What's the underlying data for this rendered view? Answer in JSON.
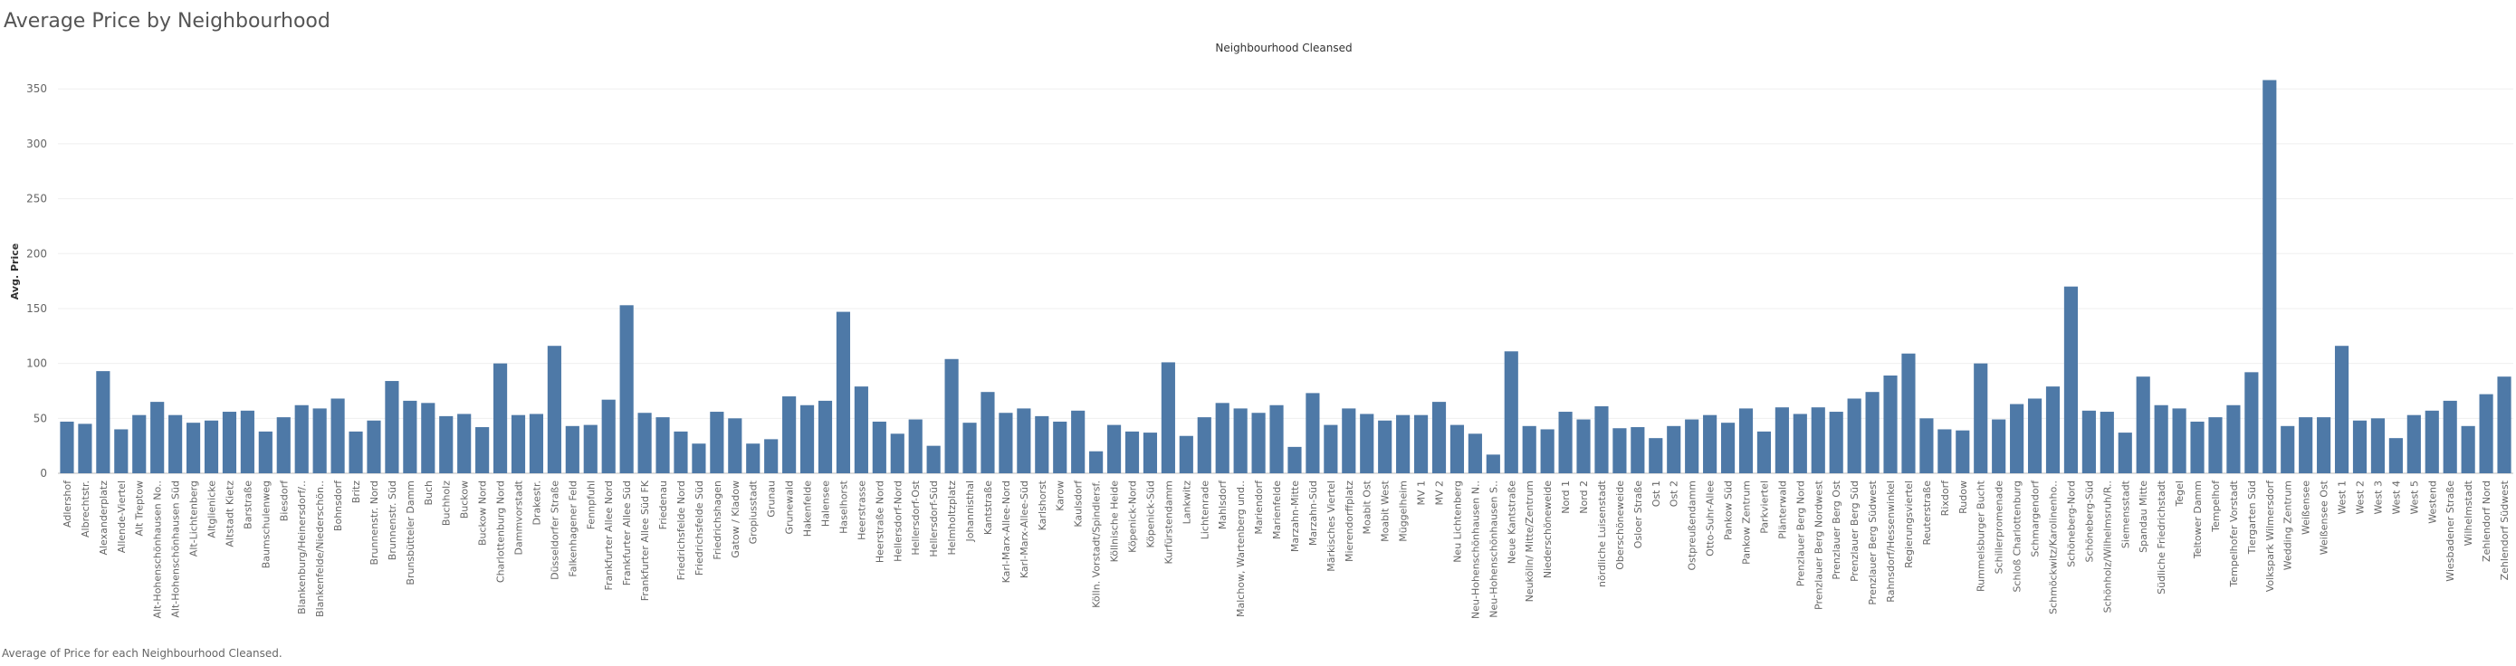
{
  "chart_data": {
    "type": "bar",
    "title": "Average Price by Neighbourhood",
    "header": "Neighbourhood Cleansed",
    "ylabel": "Avg. Price",
    "footer": "Average of Price for each Neighbourhood Cleansed.",
    "color": "#4e79a7",
    "grid": true,
    "ylim": [
      0,
      365
    ],
    "yticks": [
      0,
      50,
      100,
      150,
      200,
      250,
      300,
      350
    ],
    "categories": [
      "Adlershof",
      "Albrechtstr.",
      "Alexanderplatz",
      "Allende-Viertel",
      "Alt Treptow",
      "Alt-Hohenschönhausen No..",
      "Alt-Hohenschönhausen Süd",
      "Alt-Lichtenberg",
      "Altglienicke",
      "Altstadt Kietz",
      "Barstraße",
      "Baumschulenweg",
      "Biesdorf",
      "Blankenburg/Heinersdorf/..",
      "Blankenfelde/Niederschön..",
      "Bohnsdorf",
      "Britz",
      "Brunnenstr. Nord",
      "Brunnenstr. Süd",
      "Brunsbütteler Damm",
      "Buch",
      "Buchholz",
      "Buckow",
      "Buckow Nord",
      "Charlottenburg Nord",
      "Dammvorstadt",
      "Drakestr.",
      "Düsseldorfer Straße",
      "Falkenhagener Feld",
      "Fennpfuhl",
      "Frankfurter Allee Nord",
      "Frankfurter Allee Süd",
      "Frankfurter Allee Süd FK",
      "Friedenau",
      "Friedrichsfelde Nord",
      "Friedrichsfelde Süd",
      "Friedrichshagen",
      "Gatow / Kladow",
      "Gropiusstadt",
      "Grunau",
      "Grunewald",
      "Hakenfelde",
      "Halensee",
      "Haselhorst",
      "Heerstrasse",
      "Heerstraße Nord",
      "Hellersdorf-Nord",
      "Hellersdorf-Ost",
      "Hellersdorf-Süd",
      "Helmholtzplatz",
      "Johannisthal",
      "Kantstraße",
      "Karl-Marx-Allee-Nord",
      "Karl-Marx-Allee-Süd",
      "Karlshorst",
      "Karow",
      "Kaulsdorf",
      "Kölln. Vorstadt/Spindlersf.",
      "Köllnische Heide",
      "Köpenick-Nord",
      "Köpenick-Süd",
      "Kurfürstendamm",
      "Lankwitz",
      "Lichtenrade",
      "Mahlsdorf",
      "Malchow, Wartenberg und..",
      "Mariendorf",
      "Marienfelde",
      "Marzahn-Mitte",
      "Marzahn-Süd",
      "Märkisches Viertel",
      "Mierendorffplatz",
      "Moabit Ost",
      "Moabit West",
      "Müggelheim",
      "MV 1",
      "MV 2",
      "Neu Lichtenberg",
      "Neu-Hohenschönhausen N..",
      "Neu-Hohenschönhausen S..",
      "Neue Kantstraße",
      "Neukölln/ Mitte/Zentrum",
      "Niederschöneweide",
      "Nord 1",
      "Nord 2",
      "nördliche Luisenstadt",
      "Oberschöneweide",
      "Osloer Straße",
      "Ost 1",
      "Ost 2",
      "Ostpreußendamm",
      "Otto-Suhr-Allee",
      "Pankow Süd",
      "Pankow Zentrum",
      "Parkviertel",
      "Plänterwald",
      "Prenzlauer Berg Nord",
      "Prenzlauer Berg Nordwest",
      "Prenzlauer Berg Ost",
      "Prenzlauer Berg Süd",
      "Prenzlauer Berg Südwest",
      "Rahnsdorf/Hessenwinkel",
      "Regierungsviertel",
      "Reuterstraße",
      "Rixdorf",
      "Rudow",
      "Rummelsburger Bucht",
      "Schillerpromenade",
      "Schloß Charlottenburg",
      "Schmargendorf",
      "Schmöckwitz/Karolinenho..",
      "Schöneberg-Nord",
      "Schöneberg-Süd",
      "Schönholz/Wilhelmsruh/R..",
      "Siemensstadt",
      "Spandau Mitte",
      "Südliche Friedrichstadt",
      "Tegel",
      "Teltower Damm",
      "Tempelhof",
      "Tempelhofer Vorstadt",
      "Tiergarten Süd",
      "Volkspark Wilmersdorf",
      "Wedding Zentrum",
      "Weißensee",
      "Weißensee Ost",
      "West 1",
      "West 2",
      "West 3",
      "West 4",
      "West 5",
      "Westend",
      "Wiesbadener Straße",
      "Wilhelmstadt",
      "Zehlendorf Nord",
      "Zehlendorf Südwest"
    ],
    "values": [
      47,
      45,
      93,
      40,
      53,
      65,
      53,
      46,
      48,
      56,
      57,
      38,
      51,
      62,
      59,
      68,
      38,
      48,
      84,
      66,
      64,
      52,
      54,
      42,
      100,
      53,
      54,
      116,
      43,
      44,
      67,
      153,
      55,
      51,
      38,
      27,
      56,
      50,
      27,
      31,
      70,
      62,
      66,
      147,
      79,
      47,
      36,
      49,
      25,
      104,
      46,
      74,
      55,
      59,
      52,
      47,
      57,
      20,
      44,
      38,
      37,
      101,
      34,
      51,
      64,
      59,
      55,
      62,
      24,
      73,
      44,
      59,
      54,
      48,
      53,
      53,
      65,
      44,
      36,
      17,
      111,
      43,
      40,
      56,
      49,
      61,
      41,
      42,
      32,
      43,
      49,
      53,
      46,
      59,
      38,
      60,
      54,
      60,
      56,
      68,
      74,
      89,
      109,
      50,
      40,
      39,
      100,
      49,
      63,
      68,
      79,
      170,
      57,
      56,
      37,
      88,
      62,
      59,
      47,
      51,
      62,
      92,
      358,
      43,
      51,
      51,
      116,
      48,
      50,
      32,
      53,
      57,
      66,
      43,
      72,
      88
    ]
  }
}
